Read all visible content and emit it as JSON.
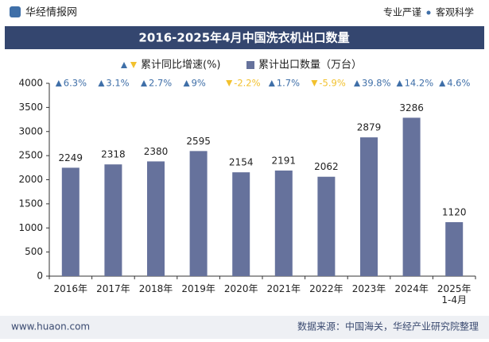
{
  "header": {
    "logo": "华经情报网",
    "slogan_left": "专业严谨",
    "slogan_right": "客观科学"
  },
  "chart_data": {
    "type": "bar",
    "title": "2016-2025年4月中国洗衣机出口数量",
    "categories": [
      "2016年",
      "2017年",
      "2018年",
      "2019年",
      "2020年",
      "2021年",
      "2022年",
      "2023年",
      "2024年",
      "2025年\n1-4月"
    ],
    "series": [
      {
        "name": "累计同比增速(%)",
        "color": "#3f6fa8",
        "down_color": "#f2c12e",
        "values": [
          6.3,
          3.1,
          2.7,
          9,
          -2.2,
          1.7,
          -5.9,
          39.8,
          14.2,
          4.6
        ],
        "value_labels": [
          "6.3%",
          "3.1%",
          "2.7%",
          "9%",
          "-2.2%",
          "1.7%",
          "-5.9%",
          "39.8%",
          "14.2%",
          "4.6%"
        ]
      },
      {
        "name": "累计出口数量（万台）",
        "color": "#66729c",
        "values": [
          2249,
          2318,
          2380,
          2595,
          2154,
          2191,
          2062,
          2879,
          3286,
          1120
        ]
      }
    ],
    "ylim": [
      0,
      4000
    ],
    "yticks": [
      0,
      500,
      1000,
      1500,
      2000,
      2500,
      3000,
      3500,
      4000
    ],
    "grid": false
  },
  "footer": {
    "website": "www.huaon.com",
    "source": "数据来源：中国海关，华经产业研究院整理"
  }
}
